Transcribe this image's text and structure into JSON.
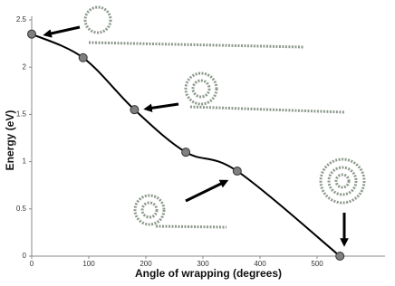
{
  "chart_data": {
    "type": "line",
    "x_label": "Angle of wrapping (degrees)",
    "y_label": "Energy (eV)",
    "x": [
      0,
      90,
      180,
      270,
      360,
      540
    ],
    "series": [
      {
        "color": "#000000",
        "values": [
          2.35,
          2.1,
          1.55,
          1.1,
          0.9,
          0
        ]
      }
    ],
    "xlim": [
      0,
      600
    ],
    "xticks": [
      0,
      100,
      200,
      300,
      400,
      500
    ],
    "ylim": [
      0,
      2.5
    ],
    "yticks": [
      0,
      0.5,
      1,
      1.5,
      2,
      2.5
    ],
    "grid": false,
    "marker_color": "#7f7f7f"
  }
}
